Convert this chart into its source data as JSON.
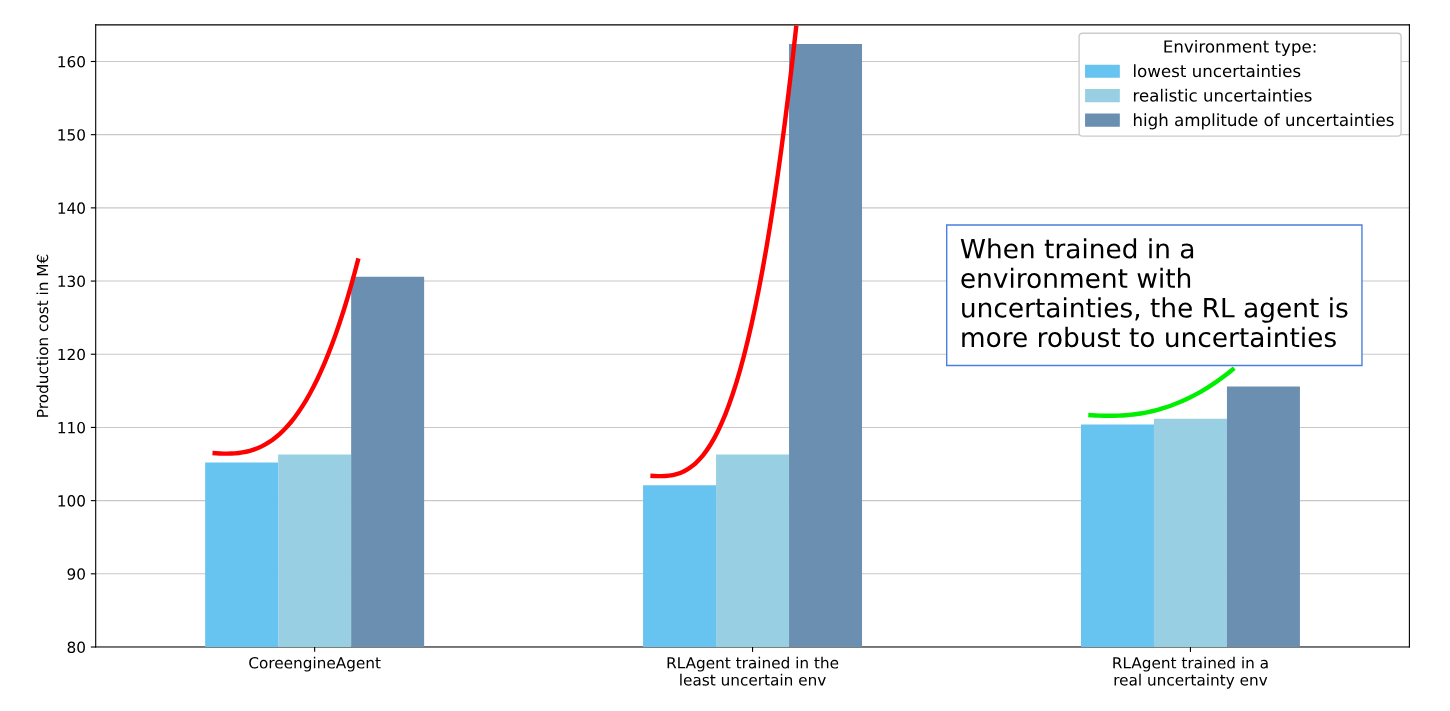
{
  "chart_data": {
    "type": "bar",
    "categories": [
      "CoreengineAgent",
      "RLAgent trained in the\nleast uncertain env",
      "RLAgent trained in a\nreal uncertainty env"
    ],
    "series": [
      {
        "name": "lowest uncertainties",
        "color": "#67c3f0",
        "values": [
          105.2,
          102.1,
          110.4
        ]
      },
      {
        "name": "realistic uncertainties",
        "color": "#99cfe3",
        "values": [
          106.3,
          106.3,
          111.2
        ]
      },
      {
        "name": "high amplitude of uncertainties",
        "color": "#6a8fb0",
        "values": [
          130.6,
          162.4,
          115.6
        ]
      }
    ],
    "ylabel": "Production cost in M€",
    "legend_title": "Environment type:",
    "legend": "top right",
    "ylim": [
      80,
      165
    ],
    "yticks": [
      80,
      90,
      100,
      110,
      120,
      130,
      140,
      150,
      160
    ],
    "grid": "y",
    "annotations": [
      "When trained in a\nenvironment with\nuncertainties, the RL agent is\nmore robust to uncertainties"
    ]
  }
}
